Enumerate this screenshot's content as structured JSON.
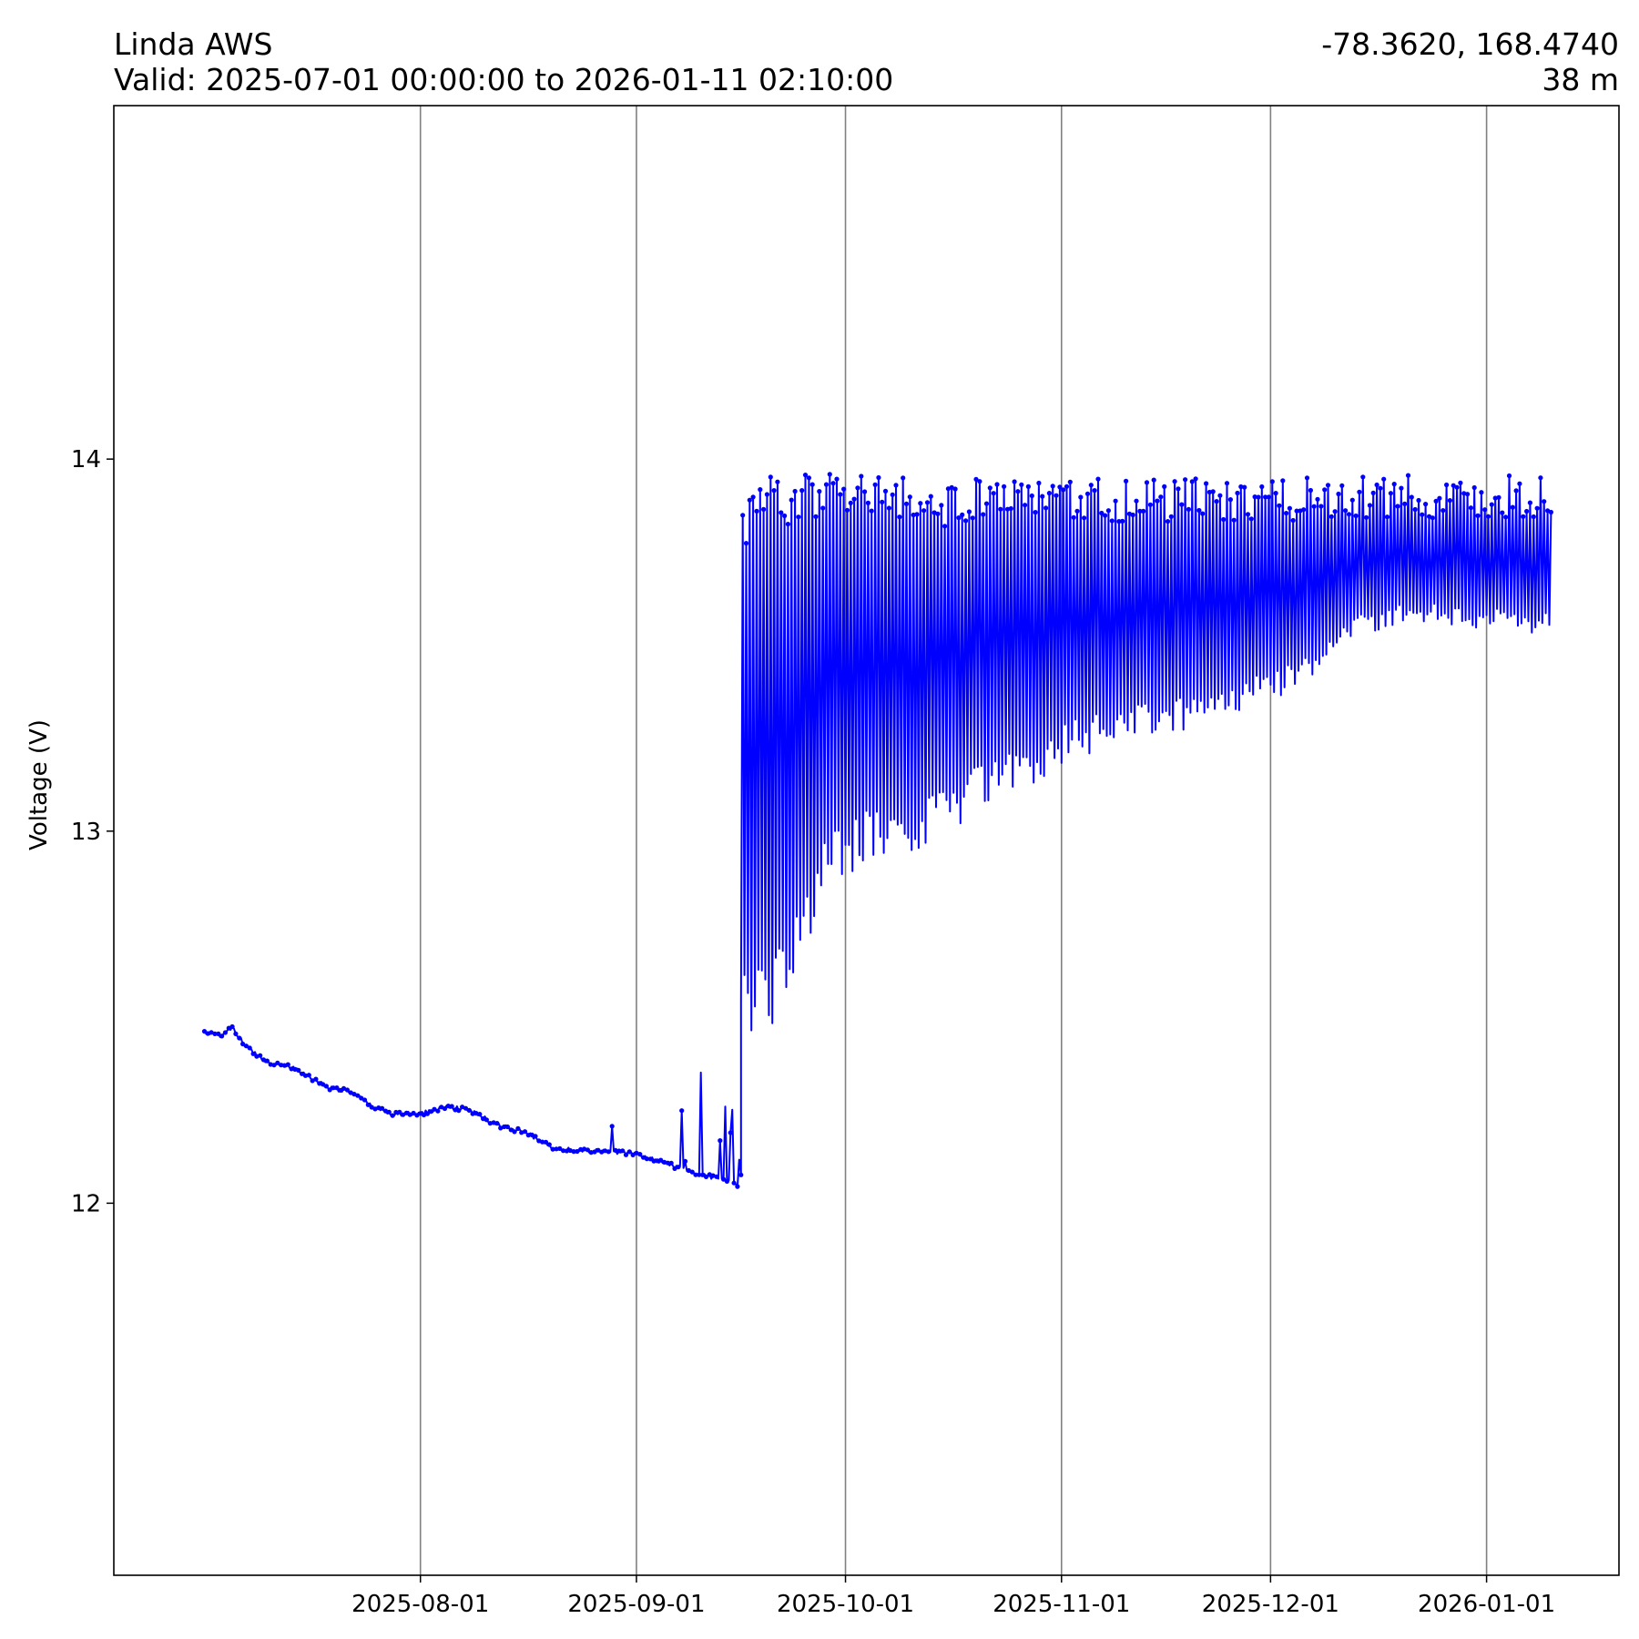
{
  "header": {
    "title": "Linda AWS",
    "valid_range": "Valid: 2025-07-01 00:00:00 to 2026-01-11 02:10:00",
    "coordinates": "-78.3620, 168.4740",
    "elevation": "38 m"
  },
  "chart_data": {
    "type": "line",
    "ylabel": "Voltage (V)",
    "ylim": [
      11.0,
      14.95
    ],
    "xlim": [
      "2025-06-18",
      "2026-01-20"
    ],
    "grid": "x-major",
    "x_ticks": [
      "2025-08-01",
      "2025-09-01",
      "2025-10-01",
      "2025-11-01",
      "2025-12-01",
      "2026-01-01"
    ],
    "y_ticks": [
      12,
      13,
      14
    ],
    "line_color": "#0000ff",
    "grid_color": "#808080",
    "series": [
      {
        "marker": "dot",
        "trend": [
          [
            "2025-07-01",
            12.46
          ],
          [
            "2025-07-03",
            12.45
          ],
          [
            "2025-07-05",
            12.47
          ],
          [
            "2025-07-07",
            12.42
          ],
          [
            "2025-07-10",
            12.38
          ],
          [
            "2025-07-13",
            12.37
          ],
          [
            "2025-07-16",
            12.34
          ],
          [
            "2025-07-19",
            12.31
          ],
          [
            "2025-07-22",
            12.3
          ],
          [
            "2025-07-25",
            12.26
          ],
          [
            "2025-07-28",
            12.24
          ],
          [
            "2025-08-01",
            12.24
          ],
          [
            "2025-08-05",
            12.26
          ],
          [
            "2025-08-08",
            12.25
          ],
          [
            "2025-08-12",
            12.21
          ],
          [
            "2025-08-16",
            12.19
          ],
          [
            "2025-08-20",
            12.15
          ],
          [
            "2025-08-24",
            12.14
          ],
          [
            "2025-08-28",
            12.14
          ],
          [
            "2025-09-01",
            12.13
          ],
          [
            "2025-09-05",
            12.11
          ],
          [
            "2025-09-09",
            12.08
          ],
          [
            "2025-09-12",
            12.07
          ],
          [
            "2025-09-15",
            12.06
          ],
          [
            "2025-09-16",
            12.04
          ]
        ],
        "envelope": [
          [
            "2025-09-16",
            12.45,
            13.88
          ],
          [
            "2025-09-20",
            12.45,
            13.96
          ],
          [
            "2025-09-23",
            12.55,
            13.9
          ],
          [
            "2025-09-25",
            12.65,
            13.96
          ],
          [
            "2025-09-28",
            12.82,
            13.97
          ],
          [
            "2025-10-01",
            12.87,
            13.96
          ],
          [
            "2025-10-05",
            12.93,
            13.97
          ],
          [
            "2025-10-09",
            12.94,
            13.96
          ],
          [
            "2025-10-13",
            12.96,
            13.9
          ],
          [
            "2025-10-17",
            13.0,
            13.95
          ],
          [
            "2025-10-21",
            13.06,
            13.96
          ],
          [
            "2025-10-25",
            13.1,
            13.95
          ],
          [
            "2025-10-29",
            13.14,
            13.95
          ],
          [
            "2025-11-02",
            13.18,
            13.95
          ],
          [
            "2025-11-08",
            13.22,
            13.95
          ],
          [
            "2025-11-14",
            13.25,
            13.95
          ],
          [
            "2025-11-20",
            13.28,
            13.95
          ],
          [
            "2025-11-26",
            13.32,
            13.95
          ],
          [
            "2025-12-02",
            13.36,
            13.95
          ],
          [
            "2025-12-08",
            13.42,
            13.96
          ],
          [
            "2025-12-14",
            13.52,
            13.96
          ],
          [
            "2025-12-20",
            13.55,
            13.96
          ],
          [
            "2025-12-26",
            13.55,
            13.96
          ],
          [
            "2026-01-01",
            13.54,
            13.96
          ],
          [
            "2026-01-06",
            13.52,
            13.96
          ],
          [
            "2026-01-10",
            13.52,
            13.96
          ]
        ]
      }
    ]
  }
}
